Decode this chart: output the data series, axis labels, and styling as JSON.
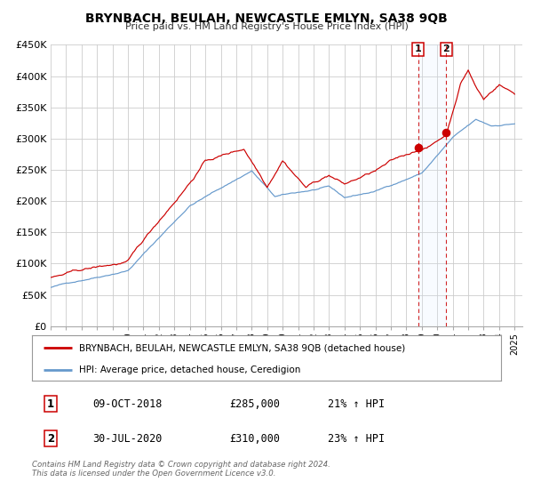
{
  "title": "BRYNBACH, BEULAH, NEWCASTLE EMLYN, SA38 9QB",
  "subtitle": "Price paid vs. HM Land Registry's House Price Index (HPI)",
  "ylim": [
    0,
    450000
  ],
  "yticks": [
    0,
    50000,
    100000,
    150000,
    200000,
    250000,
    300000,
    350000,
    400000,
    450000
  ],
  "ytick_labels": [
    "£0",
    "£50K",
    "£100K",
    "£150K",
    "£200K",
    "£250K",
    "£300K",
    "£350K",
    "£400K",
    "£450K"
  ],
  "xlim_start": 1995.0,
  "xlim_end": 2025.5,
  "xticks": [
    1995,
    1996,
    1997,
    1998,
    1999,
    2000,
    2001,
    2002,
    2003,
    2004,
    2005,
    2006,
    2007,
    2008,
    2009,
    2010,
    2011,
    2012,
    2013,
    2014,
    2015,
    2016,
    2017,
    2018,
    2019,
    2020,
    2021,
    2022,
    2023,
    2024,
    2025
  ],
  "event1_x": 2018.77,
  "event1_price": 285000,
  "event1_label": "09-OCT-2018",
  "event1_pct": "21% ↑ HPI",
  "event2_x": 2020.58,
  "event2_price": 310000,
  "event2_label": "30-JUL-2020",
  "event2_pct": "23% ↑ HPI",
  "red_color": "#cc0000",
  "blue_color": "#6699cc",
  "shaded_color": "#ddeeff",
  "background_color": "#ffffff",
  "grid_color": "#cccccc",
  "legend_label_red": "BRYNBACH, BEULAH, NEWCASTLE EMLYN, SA38 9QB (detached house)",
  "legend_label_blue": "HPI: Average price, detached house, Ceredigion",
  "footer": "Contains HM Land Registry data © Crown copyright and database right 2024.\nThis data is licensed under the Open Government Licence v3.0."
}
